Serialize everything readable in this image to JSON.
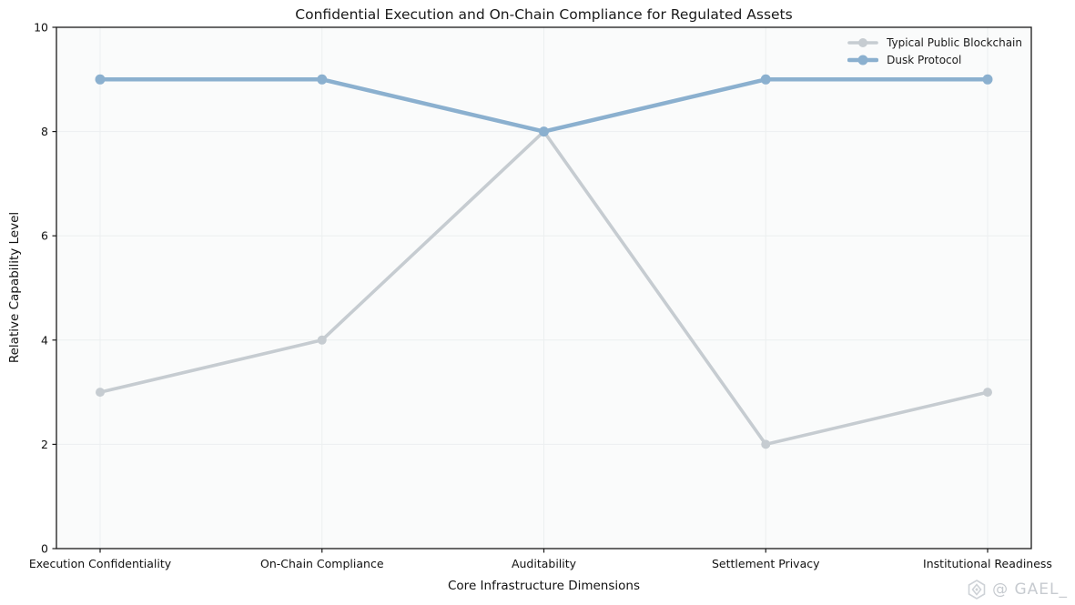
{
  "chart_data": {
    "type": "line",
    "title": "Confidential Execution and On-Chain Compliance for Regulated Assets",
    "xlabel": "Core Infrastructure Dimensions",
    "ylabel": "Relative Capability Level",
    "categories": [
      "Execution Confidentiality",
      "On-Chain Compliance",
      "Auditability",
      "Settlement Privacy",
      "Institutional Readiness"
    ],
    "yticks": [
      0,
      2,
      4,
      6,
      8,
      10
    ],
    "ylim": [
      0,
      10
    ],
    "grid": true,
    "legend_position": "upper right",
    "series": [
      {
        "name": "Typical Public Blockchain",
        "values": [
          3,
          4,
          8,
          2,
          3
        ],
        "color": "#c6ccd1"
      },
      {
        "name": "Dusk Protocol",
        "values": [
          9,
          9,
          8,
          9,
          9
        ],
        "color": "#8bb0cf"
      }
    ],
    "colors": {
      "plot_bg": "#fafbfb",
      "grid": "#eceff0",
      "spine": "#1a1a1a",
      "text": "#111111"
    }
  },
  "watermark": {
    "text": "@ GAEL_",
    "logo": "gael-diamond-logo"
  }
}
